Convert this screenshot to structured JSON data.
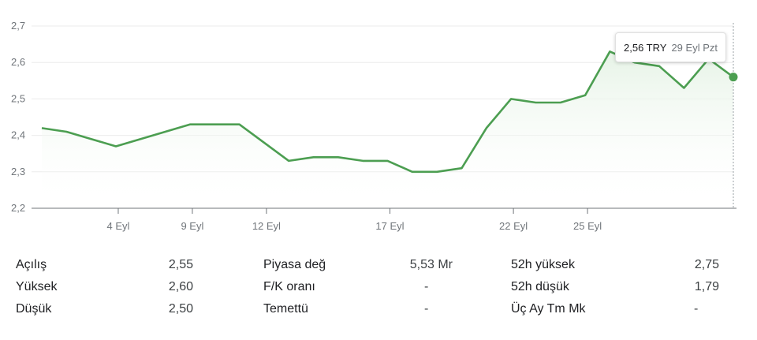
{
  "colors": {
    "line": "#4c9e51",
    "fill_top": "#e6f3e6",
    "grid": "#ebebeb",
    "axis": "#70757a"
  },
  "chart_data": {
    "type": "line",
    "currency": "TRY",
    "x": [
      "2023-09-01",
      "2023-09-02",
      "2023-09-03",
      "2023-09-04",
      "2023-09-05",
      "2023-09-06",
      "2023-09-07",
      "2023-09-08",
      "2023-09-09",
      "2023-09-10",
      "2023-09-11",
      "2023-09-12",
      "2023-09-13",
      "2023-09-14",
      "2023-09-15",
      "2023-09-16",
      "2023-09-17",
      "2023-09-18",
      "2023-09-19",
      "2023-09-20",
      "2023-09-21",
      "2023-09-22",
      "2023-09-23",
      "2023-09-24",
      "2023-09-25",
      "2023-09-26",
      "2023-09-27",
      "2023-09-28",
      "2023-09-29"
    ],
    "y": [
      2.42,
      2.41,
      2.39,
      2.37,
      2.39,
      2.41,
      2.43,
      2.43,
      2.43,
      2.38,
      2.33,
      2.34,
      2.34,
      2.33,
      2.33,
      2.3,
      2.3,
      2.31,
      2.42,
      2.5,
      2.49,
      2.49,
      2.51,
      2.63,
      2.6,
      2.59,
      2.53,
      2.61,
      2.56
    ],
    "ylim": [
      2.2,
      2.7
    ],
    "yticks": [
      "2,7",
      "2,6",
      "2,5",
      "2,4",
      "2,3",
      "2,2"
    ],
    "xticks": [
      "4 Eyl",
      "9 Eyl",
      "12 Eyl",
      "17 Eyl",
      "22 Eyl",
      "25 Eyl"
    ],
    "grid": true,
    "tooltip": {
      "value": "2,56 TRY",
      "date": "29 Eyl Pzt"
    }
  },
  "stats": {
    "col1": [
      {
        "label": "Açılış",
        "value": "2,55"
      },
      {
        "label": "Yüksek",
        "value": "2,60"
      },
      {
        "label": "Düşük",
        "value": "2,50"
      }
    ],
    "col2": [
      {
        "label": "Piyasa değ",
        "value": "5,53 Mr"
      },
      {
        "label": "F/K oranı",
        "value": "-"
      },
      {
        "label": "Temettü",
        "value": "-"
      }
    ],
    "col3": [
      {
        "label": "52h yüksek",
        "value": "2,75"
      },
      {
        "label": "52h düşük",
        "value": "1,79"
      },
      {
        "label": "Üç Ay Tm Mk",
        "value": "-"
      }
    ]
  }
}
